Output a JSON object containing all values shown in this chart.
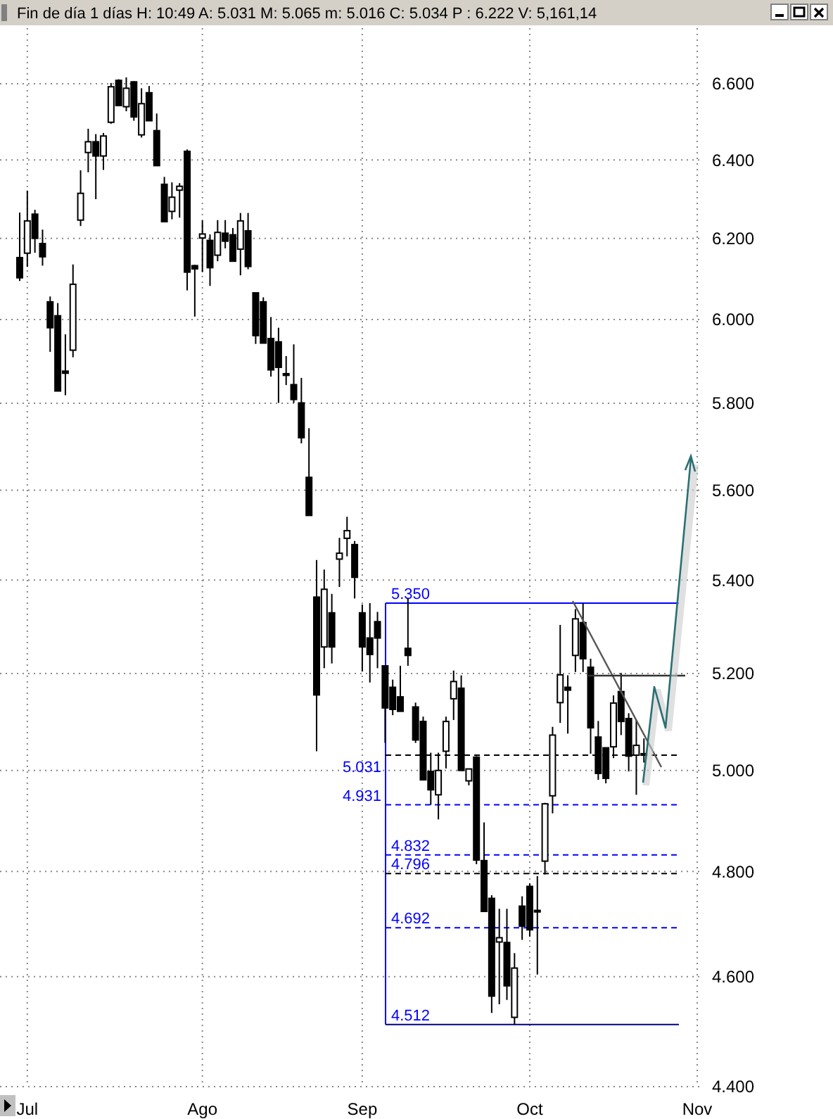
{
  "chart_data": {
    "type": "candlestick",
    "title": "Fin de día 1 días  H: 10:49  A: 5.031  M: 5.065  m: 5.016  C: 5.034  P : 6.222  V: 5,161,14",
    "categories": [
      null,
      "Jul",
      null,
      null,
      null,
      null,
      null,
      null,
      null,
      null,
      null,
      null,
      null,
      null,
      null,
      null,
      null,
      null,
      null,
      null,
      null,
      null,
      null,
      null,
      "Ago",
      null,
      null,
      null,
      null,
      null,
      null,
      null,
      null,
      null,
      null,
      null,
      null,
      null,
      null,
      null,
      null,
      null,
      null,
      null,
      null,
      "Sep",
      null,
      null,
      null,
      null,
      null,
      null,
      null,
      null,
      null,
      null,
      null,
      null,
      null,
      null,
      null,
      null,
      null,
      null,
      null,
      null,
      null,
      "Oct",
      null,
      null,
      null,
      null,
      null,
      null,
      null,
      null,
      null,
      null,
      null,
      null,
      null,
      null,
      null,
      null,
      null,
      null,
      null,
      null,
      null,
      "Nov"
    ],
    "ohlc": [
      [
        6.152,
        6.265,
        6.094,
        6.102
      ],
      [
        6.163,
        6.321,
        6.129,
        6.244
      ],
      [
        6.261,
        6.272,
        6.164,
        6.2
      ],
      [
        6.187,
        6.222,
        6.132,
        6.154
      ],
      [
        6.043,
        6.056,
        5.922,
        5.98
      ],
      [
        6.009,
        6.04,
        5.829,
        5.829
      ],
      [
        5.876,
        5.964,
        5.819,
        5.871
      ],
      [
        5.926,
        6.135,
        5.909,
        6.086
      ],
      [
        6.246,
        6.373,
        6.231,
        6.314
      ],
      [
        6.419,
        6.481,
        6.368,
        6.447
      ],
      [
        6.447,
        6.467,
        6.299,
        6.41
      ],
      [
        6.41,
        6.47,
        6.374,
        6.462
      ],
      [
        6.498,
        6.602,
        6.494,
        6.592
      ],
      [
        6.609,
        6.612,
        6.542,
        6.542
      ],
      [
        6.539,
        6.617,
        6.527,
        6.588
      ],
      [
        6.605,
        6.607,
        6.502,
        6.512
      ],
      [
        6.465,
        6.588,
        6.458,
        6.547
      ],
      [
        6.576,
        6.594,
        6.502,
        6.502
      ],
      [
        6.476,
        6.521,
        6.385,
        6.385
      ],
      [
        6.337,
        6.356,
        6.242,
        6.242
      ],
      [
        6.268,
        6.342,
        6.248,
        6.304
      ],
      [
        6.322,
        6.34,
        6.252,
        6.332
      ],
      [
        6.422,
        6.427,
        6.071,
        6.116
      ],
      [
        6.132,
        6.134,
        6.007,
        6.124
      ],
      [
        6.201,
        6.245,
        6.116,
        6.211
      ],
      [
        6.195,
        6.21,
        6.082,
        6.127
      ],
      [
        6.158,
        6.246,
        6.143,
        6.215
      ],
      [
        6.213,
        6.246,
        6.175,
        6.193
      ],
      [
        6.209,
        6.226,
        6.143,
        6.143
      ],
      [
        6.173,
        6.264,
        6.108,
        6.244
      ],
      [
        6.219,
        6.264,
        6.123,
        6.13
      ],
      [
        6.065,
        6.065,
        5.941,
        5.961
      ],
      [
        6.043,
        6.054,
        5.943,
        5.943
      ],
      [
        5.954,
        6.006,
        5.863,
        5.879
      ],
      [
        5.946,
        5.98,
        5.801,
        5.885
      ],
      [
        5.87,
        5.912,
        5.843,
        5.866
      ],
      [
        5.844,
        5.94,
        5.801,
        5.809
      ],
      [
        5.801,
        5.86,
        5.707,
        5.72
      ],
      [
        5.629,
        5.742,
        5.543,
        5.543
      ],
      [
        5.363,
        5.444,
        5.039,
        5.155
      ],
      [
        5.256,
        5.423,
        5.211,
        5.38
      ],
      [
        5.329,
        5.37,
        5.221,
        5.256
      ],
      [
        5.446,
        5.493,
        5.385,
        5.459
      ],
      [
        5.492,
        5.54,
        5.452,
        5.509
      ],
      [
        5.478,
        5.486,
        5.36,
        5.406
      ],
      [
        5.329,
        5.347,
        5.204,
        5.256
      ],
      [
        5.275,
        5.35,
        5.181,
        5.24
      ],
      [
        5.31,
        5.331,
        5.211,
        5.275
      ],
      [
        5.216,
        5.216,
        5.056,
        5.128
      ],
      [
        5.171,
        5.187,
        5.113,
        5.125
      ],
      [
        5.151,
        5.216,
        5.121,
        5.121
      ],
      [
        5.253,
        5.361,
        5.216,
        5.238
      ],
      [
        5.13,
        5.139,
        5.056,
        5.062
      ],
      [
        5.1,
        5.11,
        4.981,
        4.981
      ],
      [
        4.998,
        5.036,
        4.931,
        4.961
      ],
      [
        4.951,
        5.036,
        4.902,
        5.0
      ],
      [
        5.039,
        5.11,
        5.004,
        5.1
      ],
      [
        5.147,
        5.206,
        5.103,
        5.183
      ],
      [
        5.169,
        5.196,
        5.0,
        5.0
      ],
      [
        4.979,
        5.003,
        4.97,
        5.003
      ],
      [
        5.027,
        5.029,
        4.814,
        4.822
      ],
      [
        4.821,
        4.896,
        4.723,
        4.723
      ],
      [
        4.748,
        4.754,
        4.533,
        4.564
      ],
      [
        4.665,
        4.728,
        4.549,
        4.673
      ],
      [
        4.664,
        4.728,
        4.557,
        4.583
      ],
      [
        4.525,
        4.644,
        4.512,
        4.616
      ],
      [
        4.733,
        4.752,
        4.669,
        4.695
      ],
      [
        4.771,
        4.777,
        4.675,
        4.688
      ],
      [
        4.725,
        4.791,
        4.604,
        4.722
      ],
      [
        4.82,
        4.935,
        4.794,
        4.933
      ],
      [
        4.949,
        5.089,
        4.914,
        5.072
      ],
      [
        5.139,
        5.303,
        5.097,
        5.197
      ],
      [
        5.171,
        5.196,
        5.075,
        5.165
      ],
      [
        5.238,
        5.337,
        5.203,
        5.316
      ],
      [
        5.308,
        5.35,
        5.203,
        5.231
      ],
      [
        5.213,
        5.231,
        5.034,
        5.087
      ],
      [
        5.068,
        5.101,
        4.981,
        4.994
      ],
      [
        5.046,
        5.046,
        4.974,
        4.984
      ],
      [
        5.048,
        5.154,
        5.025,
        5.138
      ],
      [
        5.162,
        5.201,
        5.072,
        5.1
      ],
      [
        5.106,
        5.117,
        4.998,
        5.029
      ],
      [
        5.031,
        5.103,
        4.951,
        5.051
      ],
      [
        5.031,
        5.065,
        5.016,
        5.034
      ],
      null,
      null,
      null,
      null,
      null,
      null,
      null
    ],
    "log": true,
    "ylim": [
      4.4,
      6.75
    ],
    "yticks": [
      {
        "value": 4.4,
        "label": "4.400"
      },
      {
        "value": 4.6,
        "label": "4.600"
      },
      {
        "value": 4.8,
        "label": "4.800"
      },
      {
        "value": 5.0,
        "label": "5.000"
      },
      {
        "value": 5.2,
        "label": "5.200"
      },
      {
        "value": 5.4,
        "label": "5.400"
      },
      {
        "value": 5.6,
        "label": "5.600"
      },
      {
        "value": 5.8,
        "label": "5.800"
      },
      {
        "value": 6.0,
        "label": "6.000"
      },
      {
        "value": 6.2,
        "label": "6.200"
      },
      {
        "value": 6.4,
        "label": "6.400"
      },
      {
        "value": 6.6,
        "label": "6.600"
      }
    ],
    "grid": true,
    "ref_lines": [
      {
        "axis": "y",
        "value": 5.35,
        "label": "5.350",
        "color": "#0000ff",
        "line_style": "solid"
      },
      {
        "axis": "y",
        "value": 5.031,
        "label": "5.031",
        "color": "#000000",
        "line_style": "dashed"
      },
      {
        "axis": "y",
        "value": 4.931,
        "label": "4.931",
        "color": "#0000ff",
        "line_style": "dashed"
      },
      {
        "axis": "y",
        "value": 4.832,
        "label": "4.832",
        "color": "#0000ff",
        "line_style": "dashed"
      },
      {
        "axis": "y",
        "value": 4.796,
        "label": "4.796",
        "color": "#000000",
        "line_style": "dashed"
      },
      {
        "axis": "y",
        "value": 4.692,
        "label": "4.692",
        "color": "#0000ff",
        "line_style": "dashed"
      },
      {
        "axis": "y",
        "value": 4.512,
        "label": "4.512",
        "color": "#000080",
        "line_style": "solid"
      }
    ]
  }
}
